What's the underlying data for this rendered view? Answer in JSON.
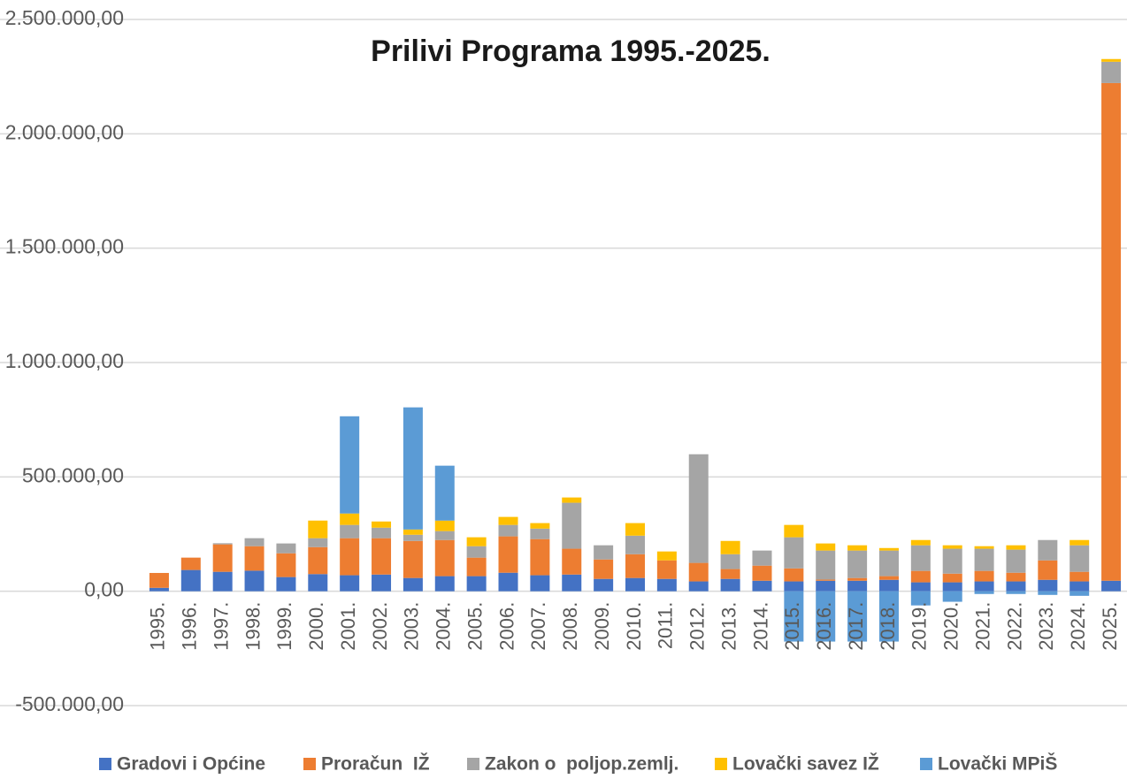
{
  "chart_data": {
    "type": "stacked_bar",
    "title": "Prilivi Programa 1995.-2025.",
    "categories": [
      "1995.",
      "1996.",
      "1997.",
      "1998.",
      "1999.",
      "2000.",
      "2001.",
      "2002.",
      "2003.",
      "2004.",
      "2005.",
      "2006.",
      "2007.",
      "2008.",
      "2009.",
      "2010.",
      "2011.",
      "2012.",
      "2013.",
      "2014.",
      "2015.",
      "2016.",
      "2017.",
      "2018.",
      "2019.",
      "2020.",
      "2021.",
      "2022.",
      "2023.",
      "2024.",
      "2025."
    ],
    "series": [
      {
        "name": "Gradovi i Općine",
        "color": "#4472c4",
        "values": [
          15000,
          93000,
          85000,
          90000,
          62000,
          75000,
          70000,
          73000,
          58000,
          66000,
          66000,
          81000,
          70000,
          73000,
          54000,
          58000,
          54000,
          43000,
          54000,
          46000,
          43000,
          46000,
          46000,
          50000,
          39000,
          39000,
          43000,
          43000,
          50000,
          43000,
          46000
        ]
      },
      {
        "name": "Proračun  IŽ",
        "color": "#ed7d31",
        "values": [
          65000,
          54000,
          120000,
          107000,
          104000,
          118000,
          162000,
          159000,
          162000,
          158000,
          81000,
          159000,
          158000,
          113000,
          85000,
          104000,
          81000,
          81000,
          43000,
          66000,
          57000,
          5000,
          12000,
          16000,
          50000,
          38000,
          46000,
          38000,
          85000,
          42000,
          2176000
        ]
      },
      {
        "name": "Zakon o  poljop.zemlj.",
        "color": "#a5a5a5",
        "values": [
          0,
          0,
          5000,
          35000,
          43000,
          39000,
          58000,
          46000,
          27000,
          39000,
          50000,
          50000,
          46000,
          201000,
          62000,
          81000,
          0,
          475000,
          65000,
          66000,
          136000,
          127000,
          120000,
          112000,
          112000,
          109000,
          97000,
          101000,
          89000,
          116000,
          93000
        ]
      },
      {
        "name": "Lovački savez IŽ",
        "color": "#ffc000",
        "values": [
          0,
          0,
          0,
          0,
          0,
          77000,
          50000,
          27000,
          23000,
          46000,
          39000,
          35000,
          24000,
          23000,
          0,
          55000,
          39000,
          0,
          58000,
          0,
          54000,
          31000,
          23000,
          11000,
          23000,
          15000,
          11000,
          19000,
          0,
          23000,
          12000
        ]
      },
      {
        "name": "Lovački MPiŠ",
        "color": "#5b9bd5",
        "values": [
          0,
          0,
          0,
          0,
          0,
          0,
          425000,
          0,
          534000,
          240000,
          0,
          0,
          0,
          0,
          0,
          0,
          0,
          0,
          0,
          0,
          -220000,
          -220000,
          -220000,
          -220000,
          -62000,
          -46000,
          -12000,
          -12000,
          -16000,
          -20000,
          0
        ]
      }
    ],
    "ylim": [
      -500000,
      2500000
    ],
    "yticks": [
      {
        "value": -500000,
        "label": "-500.000,00"
      },
      {
        "value": 0,
        "label": "0,00"
      },
      {
        "value": 500000,
        "label": "500.000,00"
      },
      {
        "value": 1000000,
        "label": "1.000.000,00"
      },
      {
        "value": 1500000,
        "label": "1.500.000,00"
      },
      {
        "value": 2000000,
        "label": "2.000.000,00"
      },
      {
        "value": 2500000,
        "label": "2.500.000,00"
      }
    ],
    "grid": true,
    "legend": "bottom"
  }
}
